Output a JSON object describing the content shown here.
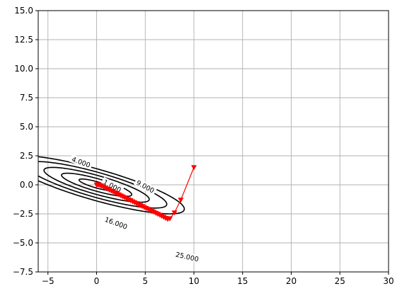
{
  "chart_data": {
    "type": "line",
    "title": "",
    "xlabel": "",
    "ylabel": "",
    "xlim": [
      -6,
      30
    ],
    "ylim": [
      -7.5,
      15
    ],
    "grid": true,
    "legend": "none",
    "x_ticks": [
      -5,
      0,
      5,
      10,
      15,
      20,
      25,
      30
    ],
    "x_tick_labels": [
      "−5",
      "0",
      "5",
      "10",
      "15",
      "20",
      "25",
      "30"
    ],
    "y_ticks": [
      -7.5,
      -5.0,
      -2.5,
      0.0,
      2.5,
      5.0,
      7.5,
      10.0,
      12.5,
      15.0
    ],
    "y_tick_labels": [
      "−7.5",
      "−5.0",
      "−2.5",
      "0.0",
      "2.5",
      "5.0",
      "7.5",
      "10.0",
      "12.5",
      "15.0"
    ],
    "contours": {
      "function": "x^2 + 6xy + 13y^2 (level sets)",
      "levels": [
        1,
        4,
        9,
        16,
        25
      ],
      "labels": [
        {
          "text": "1.000",
          "level": 1,
          "x": 1.6,
          "y": -0.1,
          "rotation": 28
        },
        {
          "text": "4.000",
          "level": 4,
          "x": -1.6,
          "y": 1.95,
          "rotation": 20
        },
        {
          "text": "9.000",
          "level": 9,
          "x": 5.0,
          "y": -0.15,
          "rotation": 28
        },
        {
          "text": "16.000",
          "level": 16,
          "x": 2.0,
          "y": -3.3,
          "rotation": 20
        },
        {
          "text": "25.000",
          "level": 25,
          "x": 9.3,
          "y": -6.2,
          "rotation": 13
        }
      ],
      "color": "#000000"
    },
    "series": [
      {
        "color": "#ff0000",
        "marker": "triangle-down",
        "x": [
          10.0,
          8.65,
          8.0,
          7.53,
          7.31,
          7.1,
          6.9,
          6.7,
          6.5,
          6.3,
          6.1,
          5.9,
          5.7,
          5.5,
          5.3,
          5.1,
          4.9,
          4.7,
          4.5,
          4.3,
          4.1,
          3.9,
          3.7,
          3.5,
          3.3,
          3.1,
          2.9,
          2.7,
          2.5,
          2.3,
          2.1,
          1.9,
          1.7,
          1.5,
          1.3,
          1.1,
          0.9,
          0.7,
          0.5,
          0.35,
          0.2,
          0.1,
          0.0
        ],
        "y": [
          1.5,
          -1.3,
          -2.4,
          -2.9,
          -2.95,
          -2.87,
          -2.78,
          -2.69,
          -2.6,
          -2.52,
          -2.44,
          -2.35,
          -2.27,
          -2.19,
          -2.1,
          -2.02,
          -1.94,
          -1.85,
          -1.77,
          -1.69,
          -1.6,
          -1.52,
          -1.44,
          -1.35,
          -1.27,
          -1.19,
          -1.1,
          -1.02,
          -0.94,
          -0.85,
          -0.77,
          -0.69,
          -0.6,
          -0.52,
          -0.44,
          -0.35,
          -0.27,
          -0.19,
          -0.1,
          -0.04,
          0.01,
          0.03,
          0.0
        ]
      }
    ]
  }
}
